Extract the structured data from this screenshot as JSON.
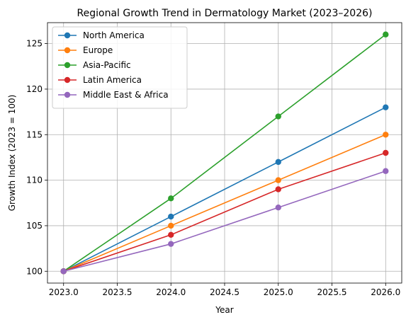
{
  "chart_data": {
    "type": "line",
    "title": "Regional Growth Trend in Dermatology Market (2023–2026)",
    "xlabel": "Year",
    "ylabel": "Growth Index (2023 = 100)",
    "x": [
      2023,
      2024,
      2025,
      2026
    ],
    "xlim": [
      2022.85,
      2026.15
    ],
    "ylim": [
      98.7,
      127.3
    ],
    "xticks": [
      2023.0,
      2023.5,
      2024.0,
      2024.5,
      2025.0,
      2025.5,
      2026.0
    ],
    "xtick_labels": [
      "2023.0",
      "2023.5",
      "2024.0",
      "2024.5",
      "2025.0",
      "2025.5",
      "2026.0"
    ],
    "yticks": [
      100,
      105,
      110,
      115,
      120,
      125
    ],
    "ytick_labels": [
      "100",
      "105",
      "110",
      "115",
      "120",
      "125"
    ],
    "grid": true,
    "legend_position": "top-left",
    "series": [
      {
        "name": "North America",
        "color": "#1f77b4",
        "values": [
          100,
          106,
          112,
          118
        ]
      },
      {
        "name": "Europe",
        "color": "#ff7f0e",
        "values": [
          100,
          105,
          110,
          115
        ]
      },
      {
        "name": "Asia-Pacific",
        "color": "#2ca02c",
        "values": [
          100,
          108,
          117,
          126
        ]
      },
      {
        "name": "Latin America",
        "color": "#d62728",
        "values": [
          100,
          104,
          109,
          113
        ]
      },
      {
        "name": "Middle East & Africa",
        "color": "#9467bd",
        "values": [
          100,
          103,
          107,
          111
        ]
      }
    ]
  }
}
